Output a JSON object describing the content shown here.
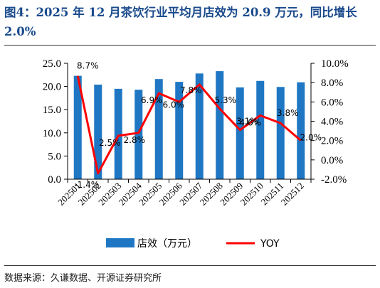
{
  "figure": {
    "title": "图4：2025 年 12 月茶饮行业平均月店效为 20.9 万元，同比增长 2.0%",
    "source": "数据来源：久谦数据、开源证券研究所"
  },
  "chart_data": {
    "type": "bar+line",
    "categories": [
      "202501",
      "202502",
      "202503",
      "202504",
      "202505",
      "202506",
      "202507",
      "202508",
      "202509",
      "202510",
      "202511",
      "202512"
    ],
    "series": [
      {
        "name": "店效（万元）",
        "type": "bar",
        "axis": "left",
        "color": "#1f77c4",
        "values": [
          22.3,
          20.4,
          19.5,
          19.3,
          21.6,
          21.0,
          22.8,
          23.3,
          19.8,
          21.2,
          19.9,
          20.9
        ]
      },
      {
        "name": "YOY",
        "type": "line",
        "axis": "right",
        "color": "#ff0000",
        "values": [
          8.7,
          -1.4,
          2.5,
          2.8,
          6.9,
          6.0,
          7.8,
          5.3,
          3.1,
          4.6,
          3.8,
          2.0
        ],
        "labels": [
          "8.7%",
          "-1.4%",
          "2.5%",
          "2.8%",
          "6.9%",
          "6.0%",
          "7.8%",
          "5.3%",
          "3.1%",
          "4.6%",
          "3.8%",
          "2.0%"
        ]
      }
    ],
    "y_left": {
      "ylim": [
        0,
        25
      ],
      "ticks": [
        "0.0",
        "5.0",
        "10.0",
        "15.0",
        "20.0",
        "25.0"
      ]
    },
    "y_right": {
      "ylim": [
        -2,
        10
      ],
      "ticks": [
        "-2.0%",
        "0.0%",
        "2.0%",
        "4.0%",
        "6.0%",
        "8.0%",
        "10.0%"
      ]
    },
    "legend_position": "bottom",
    "grid": false
  }
}
